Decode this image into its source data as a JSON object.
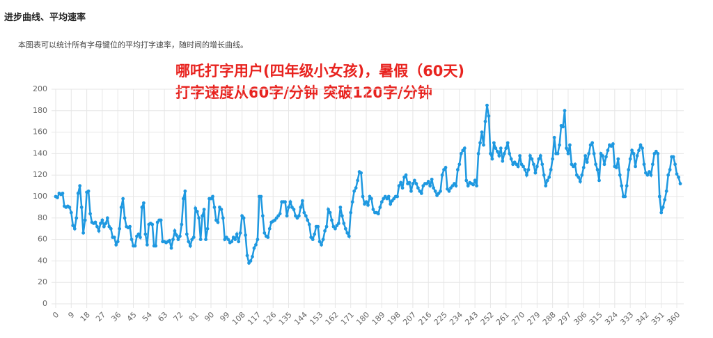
{
  "header": {
    "title": "进步曲线、平均速率",
    "description": "本图表可以统计所有字母键位的平均打字速率，随时间的增长曲线。"
  },
  "chart_data": {
    "type": "line",
    "annotations": [
      "哪吒打字用户(四年级小女孩)，暑假（60天)",
      "打字速度从60字/分钟 突破120字/分钟"
    ],
    "color": "#1e98e0",
    "grid": true,
    "xlim": [
      0,
      362
    ],
    "xticks": [
      0,
      9,
      18,
      27,
      36,
      45,
      54,
      63,
      72,
      81,
      90,
      99,
      108,
      117,
      126,
      135,
      144,
      153,
      162,
      171,
      180,
      189,
      198,
      207,
      216,
      225,
      234,
      243,
      252,
      261,
      270,
      279,
      288,
      297,
      306,
      315,
      324,
      333,
      342,
      351,
      360
    ],
    "ylim": [
      0,
      200
    ],
    "yticks": [
      0,
      20,
      40,
      60,
      80,
      100,
      120,
      140,
      160,
      180,
      200
    ],
    "values": [
      100,
      99,
      103,
      102,
      103,
      91,
      90,
      91,
      90,
      85,
      73,
      70,
      80,
      103,
      110,
      90,
      66,
      78,
      104,
      105,
      84,
      76,
      75,
      76,
      72,
      68,
      75,
      78,
      72,
      75,
      80,
      72,
      70,
      62,
      62,
      55,
      58,
      70,
      90,
      98,
      80,
      72,
      71,
      72,
      60,
      54,
      54,
      63,
      65,
      62,
      90,
      94,
      65,
      55,
      74,
      75,
      74,
      54,
      54,
      76,
      78,
      78,
      58,
      58,
      57,
      58,
      59,
      52,
      60,
      68,
      64,
      60,
      63,
      74,
      98,
      105,
      65,
      58,
      54,
      60,
      62,
      89,
      86,
      80,
      60,
      82,
      88,
      60,
      70,
      98,
      98,
      100,
      90,
      78,
      76,
      90,
      88,
      80,
      60,
      62,
      60,
      57,
      58,
      62,
      60,
      65,
      58,
      66,
      82,
      80,
      64,
      45,
      38,
      40,
      44,
      52,
      55,
      60,
      100,
      100,
      82,
      66,
      63,
      62,
      70,
      76,
      77,
      78,
      80,
      82,
      84,
      95,
      95,
      95,
      82,
      90,
      95,
      90,
      88,
      82,
      80,
      82,
      90,
      96,
      85,
      82,
      78,
      74,
      62,
      60,
      65,
      72,
      72,
      58,
      55,
      60,
      68,
      72,
      88,
      85,
      78,
      72,
      70,
      73,
      75,
      90,
      82,
      75,
      70,
      66,
      63,
      85,
      95,
      105,
      108,
      115,
      123,
      122,
      100,
      93,
      95,
      92,
      100,
      98,
      88,
      85,
      85,
      84,
      90,
      95,
      98,
      100,
      98,
      100,
      93,
      96,
      98,
      100,
      100,
      110,
      113,
      108,
      118,
      120,
      112,
      113,
      105,
      112,
      115,
      112,
      108,
      105,
      103,
      110,
      112,
      112,
      114,
      110,
      116,
      108,
      105,
      101,
      103,
      105,
      120,
      125,
      127,
      107,
      105,
      108,
      110,
      112,
      110,
      125,
      130,
      140,
      143,
      145,
      115,
      110,
      113,
      112,
      111,
      115,
      110,
      140,
      150,
      160,
      148,
      170,
      185,
      175,
      140,
      135,
      150,
      145,
      142,
      138,
      145,
      133,
      140,
      145,
      150,
      140,
      135,
      130,
      132,
      130,
      128,
      138,
      130,
      128,
      125,
      120,
      125,
      138,
      135,
      130,
      122,
      128,
      135,
      138,
      130,
      120,
      110,
      115,
      118,
      125,
      135,
      155,
      140,
      140,
      148,
      166,
      165,
      180,
      145,
      140,
      148,
      130,
      128,
      130,
      120,
      118,
      114,
      120,
      127,
      138,
      132,
      140,
      148,
      150,
      140,
      130,
      125,
      115,
      140,
      138,
      130,
      137,
      143,
      148,
      147,
      149,
      128,
      127,
      135,
      120,
      110,
      100,
      100,
      110,
      125,
      135,
      143,
      140,
      128,
      138,
      143,
      148,
      145,
      130,
      122,
      120,
      123,
      120,
      130,
      140,
      142,
      140,
      100,
      85,
      90,
      97,
      105,
      120,
      125,
      137,
      137,
      130,
      121,
      118,
      112
    ]
  }
}
